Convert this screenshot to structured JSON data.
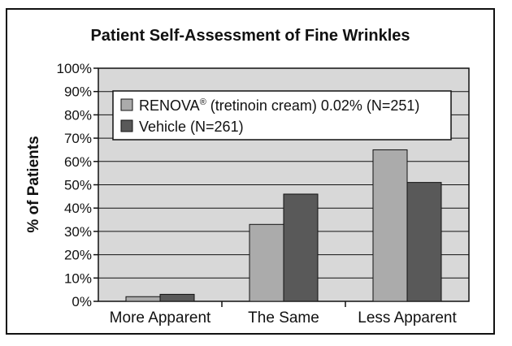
{
  "chart_data": {
    "type": "bar",
    "title": "Patient Self-Assessment of Fine Wrinkles",
    "xlabel": "",
    "ylabel": "% of Patients",
    "categories": [
      "More Apparent",
      "The Same",
      "Less Apparent"
    ],
    "series": [
      {
        "name": "RENOVA® (tretinoin cream) 0.02% (N=251)",
        "color": "#ababab",
        "values": [
          2,
          33,
          65
        ]
      },
      {
        "name": "Vehicle (N=261)",
        "color": "#595959",
        "values": [
          3,
          46,
          51
        ]
      }
    ],
    "ylim": [
      0,
      100
    ],
    "yticks": [
      "0%",
      "10%",
      "20%",
      "30%",
      "40%",
      "50%",
      "60%",
      "70%",
      "80%",
      "90%",
      "100%"
    ],
    "grid": true,
    "legend_position": "top"
  },
  "legend": {
    "renova_main": "RENOVA",
    "renova_sup": "®",
    "renova_rest": " (tretinoin cream) 0.02% (N=251)",
    "vehicle": "Vehicle (N=261)"
  },
  "colors": {
    "plot_bg": "#d8d8d8",
    "gridline": "#111111"
  }
}
